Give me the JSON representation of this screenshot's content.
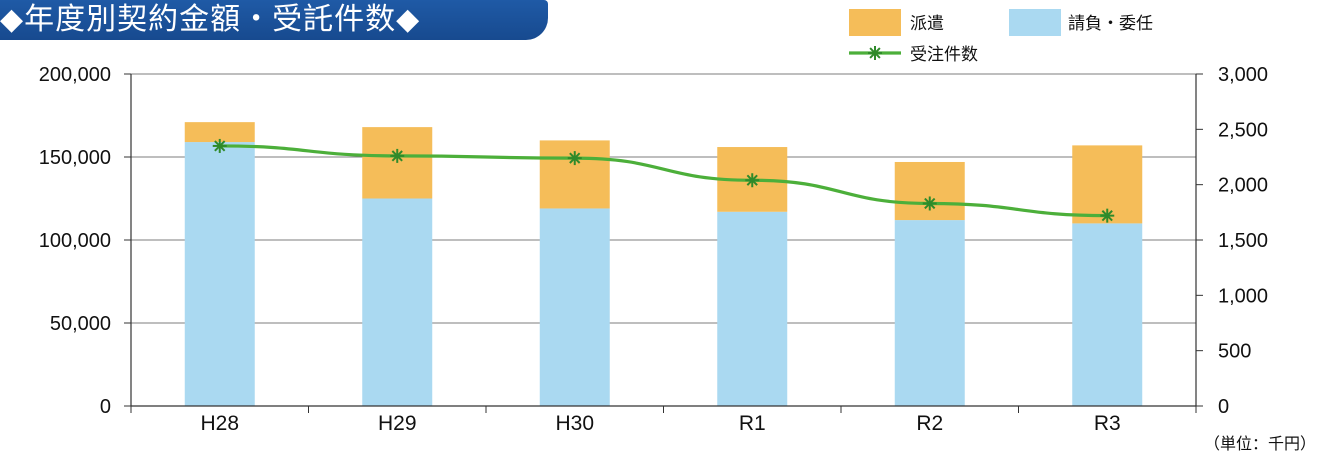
{
  "title": "◆年度別契約金額・受託件数◆",
  "unit_note": "（単位：千円）",
  "colors": {
    "haken": "#f5bd59",
    "ukeoi": "#aad9f1",
    "line": "#4caf3a",
    "banner": "#1f5aa6"
  },
  "chart_data": {
    "type": "bar",
    "stacked": true,
    "categories": [
      "H28",
      "H29",
      "H30",
      "R1",
      "R2",
      "R3"
    ],
    "series": [
      {
        "name": "請負・委任",
        "axis": "left",
        "values": [
          159000,
          125000,
          119000,
          117000,
          112000,
          110000
        ]
      },
      {
        "name": "派遣",
        "axis": "left",
        "values": [
          12000,
          43000,
          41000,
          39000,
          35000,
          47000
        ]
      },
      {
        "name": "受注件数",
        "axis": "right",
        "type": "line",
        "values": [
          2350,
          2260,
          2240,
          2040,
          1830,
          1720
        ]
      }
    ],
    "left_axis": {
      "ylim": [
        0,
        200000
      ],
      "ticks": [
        "0",
        "50,000",
        "100,000",
        "150,000",
        "200,000"
      ],
      "tick_values": [
        0,
        50000,
        100000,
        150000,
        200000
      ]
    },
    "right_axis": {
      "ylim": [
        0,
        3000
      ],
      "ticks": [
        "0",
        "500",
        "1,000",
        "1,500",
        "2,000",
        "2,500",
        "3,000"
      ],
      "tick_values": [
        0,
        500,
        1000,
        1500,
        2000,
        2500,
        3000
      ]
    },
    "legend": {
      "placement": "top-right",
      "entries": [
        "派遣",
        "請負・委任",
        "受注件数"
      ]
    },
    "grid": true
  }
}
